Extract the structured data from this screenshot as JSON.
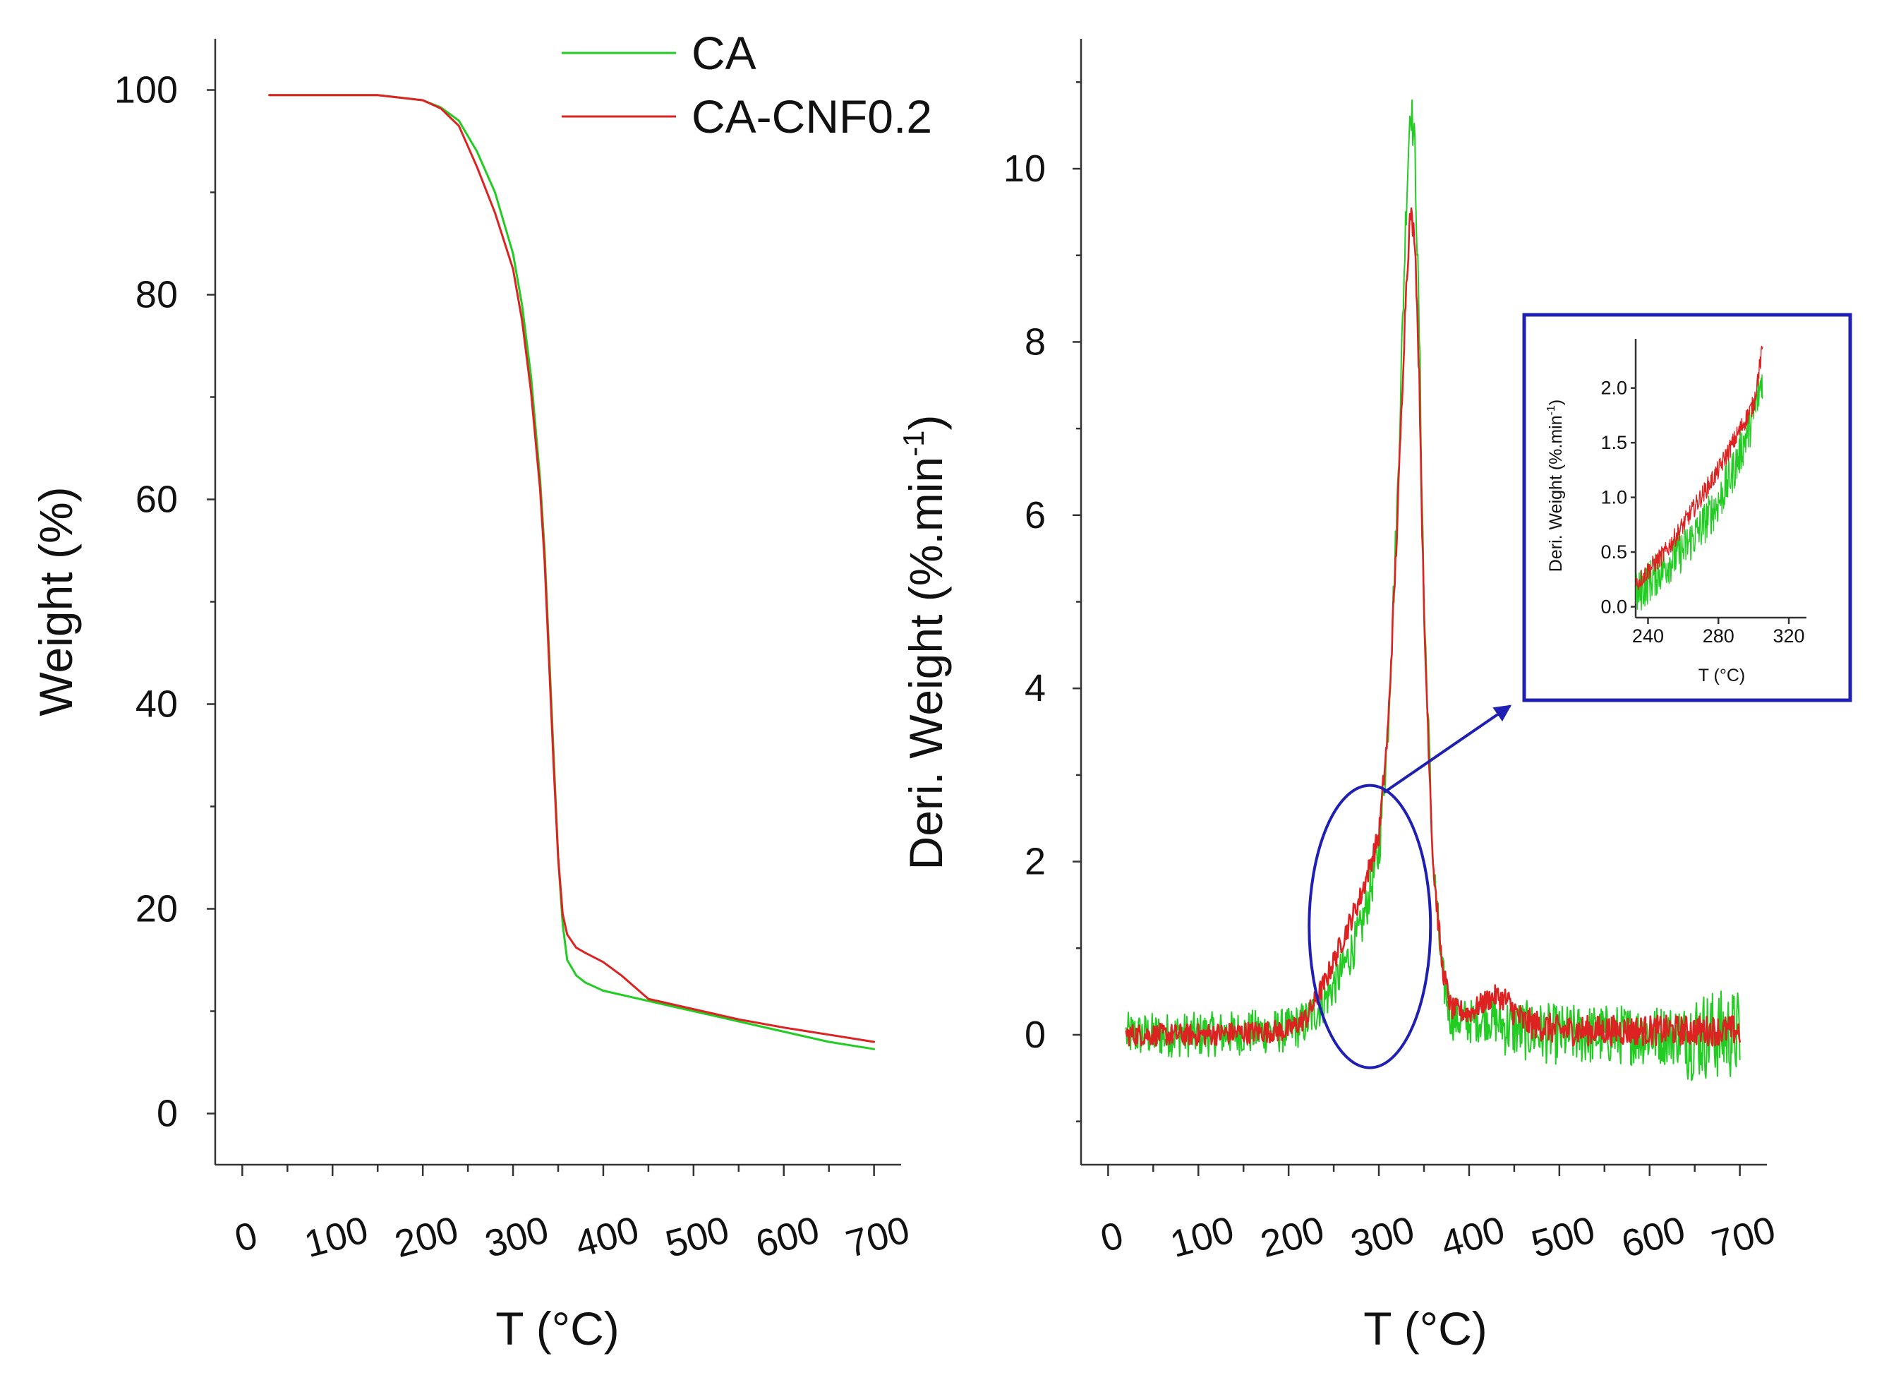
{
  "chart_data": [
    {
      "type": "line",
      "panel": "left",
      "title": "",
      "xlabel": "T (°C)",
      "ylabel": "Weight (%)",
      "xlim": [
        -30,
        730
      ],
      "ylim": [
        -5,
        105
      ],
      "xticks": [
        0,
        100,
        200,
        300,
        400,
        500,
        600,
        700
      ],
      "yticks": [
        0,
        20,
        40,
        60,
        80,
        100
      ],
      "legend": {
        "placement": "top-right",
        "entries": [
          "CA",
          "CA-CNF0.2"
        ]
      },
      "series": [
        {
          "name": "CA",
          "color": "#22cc22",
          "x": [
            30,
            150,
            200,
            220,
            240,
            260,
            280,
            300,
            310,
            320,
            330,
            335,
            340,
            345,
            350,
            355,
            360,
            370,
            380,
            400,
            450,
            500,
            550,
            600,
            650,
            700
          ],
          "y": [
            99.5,
            99.5,
            99.0,
            98.3,
            97.0,
            94.0,
            90.0,
            84.0,
            79.0,
            72.0,
            62.0,
            55.0,
            45.0,
            35.0,
            25.0,
            18.5,
            15.0,
            13.5,
            12.8,
            12.0,
            11.0,
            10.0,
            9.0,
            8.0,
            7.0,
            6.3
          ]
        },
        {
          "name": "CA-CNF0.2",
          "color": "#dd2222",
          "x": [
            30,
            150,
            200,
            220,
            240,
            260,
            280,
            300,
            310,
            320,
            330,
            335,
            340,
            345,
            350,
            355,
            360,
            370,
            380,
            400,
            420,
            450,
            500,
            550,
            600,
            650,
            700
          ],
          "y": [
            99.5,
            99.5,
            99.0,
            98.2,
            96.5,
            92.5,
            88.0,
            82.5,
            77.5,
            70.5,
            61.0,
            54.0,
            44.0,
            34.0,
            25.0,
            19.5,
            17.5,
            16.2,
            15.7,
            14.8,
            13.5,
            11.2,
            10.2,
            9.2,
            8.4,
            7.7,
            7.0
          ]
        }
      ]
    },
    {
      "type": "line",
      "panel": "right",
      "title": "",
      "xlabel": "T (°C)",
      "ylabel": "Deri. Weight (%.min",
      "ylabel_superscript": "-1",
      "ylabel_close": ")",
      "xlim": [
        -30,
        730
      ],
      "ylim": [
        -1.5,
        11.5
      ],
      "xticks": [
        0,
        100,
        200,
        300,
        400,
        500,
        600,
        700
      ],
      "yticks": [
        0,
        2,
        4,
        6,
        8,
        10
      ],
      "series": [
        {
          "name": "CA",
          "color": "#22cc22",
          "x": [
            20,
            100,
            200,
            220,
            240,
            260,
            280,
            300,
            310,
            320,
            330,
            335,
            340,
            345,
            350,
            360,
            370,
            380,
            400,
            420,
            440,
            460,
            500,
            600,
            700
          ],
          "y": [
            0.0,
            0.0,
            0.05,
            0.15,
            0.4,
            0.75,
            1.2,
            2.1,
            3.5,
            6.0,
            9.5,
            10.8,
            10.2,
            8.0,
            5.0,
            2.0,
            0.7,
            0.2,
            0.15,
            0.2,
            0.1,
            0.05,
            0.0,
            0.0,
            0.0
          ]
        },
        {
          "name": "CA-CNF0.2",
          "color": "#dd2222",
          "x": [
            20,
            100,
            200,
            220,
            240,
            260,
            280,
            300,
            310,
            320,
            330,
            335,
            340,
            345,
            350,
            360,
            370,
            380,
            400,
            420,
            430,
            440,
            460,
            500,
            600,
            700
          ],
          "y": [
            0.0,
            0.0,
            0.05,
            0.2,
            0.6,
            1.1,
            1.6,
            2.3,
            3.5,
            5.8,
            8.6,
            9.5,
            9.2,
            7.5,
            4.8,
            2.0,
            0.8,
            0.3,
            0.25,
            0.4,
            0.45,
            0.4,
            0.15,
            0.05,
            0.05,
            0.05
          ]
        }
      ],
      "annotations": [
        {
          "type": "ellipse",
          "center_data": [
            290,
            1.25
          ],
          "color": "#1f1fb4"
        },
        {
          "type": "arrow",
          "color": "#1f1fb4",
          "target": "inset"
        }
      ]
    },
    {
      "type": "line",
      "panel": "inset",
      "title": "",
      "xlabel": "T (°C)",
      "ylabel": "Deri. Weight (%.min",
      "ylabel_superscript": "-1",
      "ylabel_close": ")",
      "xlim": [
        233,
        330
      ],
      "ylim": [
        -0.1,
        2.45
      ],
      "xticks": [
        240,
        280,
        320
      ],
      "xtick_labels": [
        "240",
        "280",
        "320"
      ],
      "yticks": [
        0.0,
        0.5,
        1.0,
        1.5,
        2.0
      ],
      "ytick_labels": [
        "0.0",
        "0.5",
        "1.0",
        "1.5",
        "2.0"
      ],
      "series": [
        {
          "name": "CA",
          "color": "#22cc22",
          "x": [
            233,
            240,
            250,
            260,
            270,
            280,
            290,
            300,
            305
          ],
          "y": [
            0.1,
            0.22,
            0.38,
            0.52,
            0.72,
            0.95,
            1.3,
            1.75,
            2.1
          ]
        },
        {
          "name": "CA-CNF0.2",
          "color": "#dd2222",
          "x": [
            233,
            240,
            250,
            260,
            270,
            280,
            290,
            300,
            305
          ],
          "y": [
            0.2,
            0.33,
            0.5,
            0.75,
            1.0,
            1.25,
            1.55,
            1.85,
            2.35
          ]
        }
      ]
    }
  ]
}
